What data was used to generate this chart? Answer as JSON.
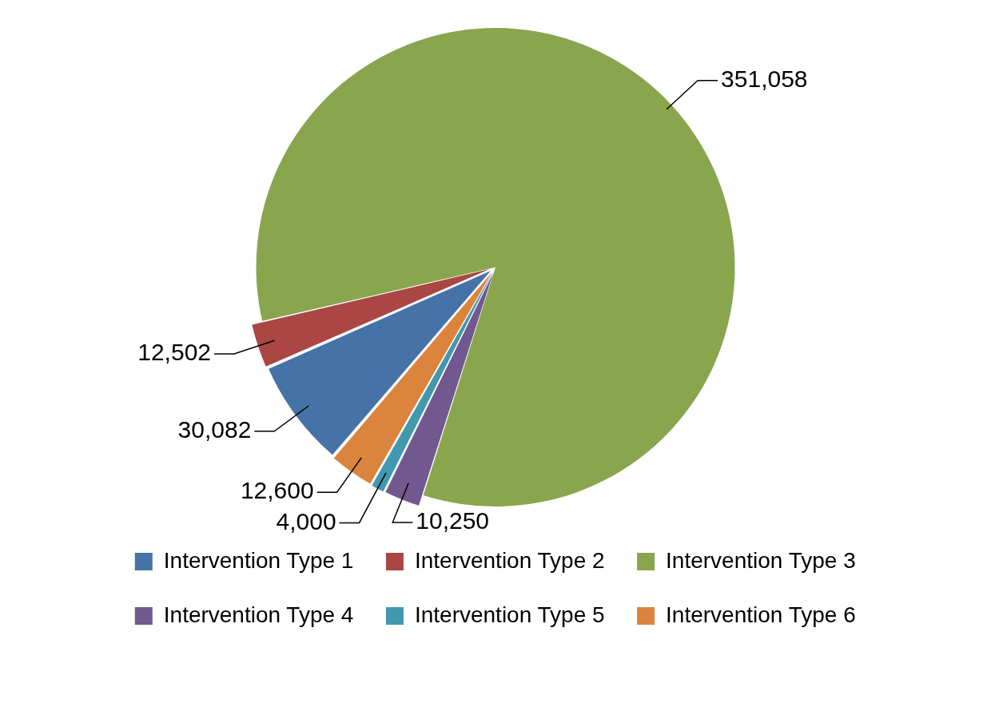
{
  "chart_data": {
    "type": "pie",
    "categories": [
      "Intervention Type 1",
      "Intervention Type 2",
      "Intervention Type 3",
      "Intervention Type 4",
      "Intervention Type 5",
      "Intervention Type 6"
    ],
    "values": [
      30082,
      12502,
      351058,
      10250,
      4000,
      12600
    ],
    "colors": [
      "#4572a7",
      "#aa4643",
      "#89a54e",
      "#71588f",
      "#4198af",
      "#db843d"
    ],
    "value_labels": [
      "30,082",
      "12,502",
      "351,058",
      "10,250",
      "4,000",
      "12,600"
    ],
    "legend": "bottom"
  }
}
